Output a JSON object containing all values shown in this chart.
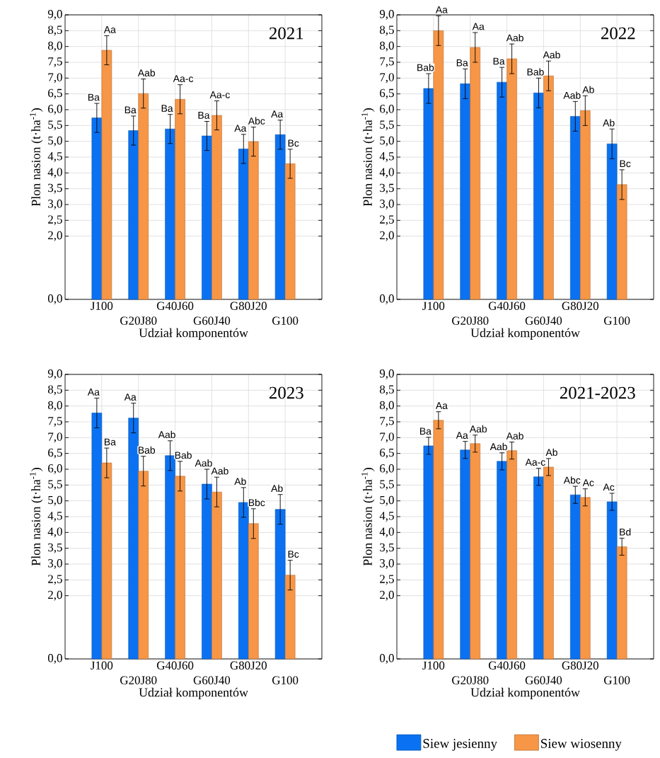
{
  "chart_data": [
    {
      "type": "bar",
      "title": "2021",
      "xlabel": "Udział komponentów",
      "ylabel": "Plon nasion (t·ha$^{-1}$)",
      "categories": [
        "J100",
        "G20J80",
        "G40J60",
        "G60J40",
        "G80J20",
        "G100"
      ],
      "ylim": [
        0,
        9
      ],
      "yticks": [
        {
          "value": 0,
          "label": "0,0"
        },
        {
          "value": 2,
          "label": "2,0"
        },
        {
          "value": 2.5,
          "label": "2,5"
        },
        {
          "value": 3,
          "label": "3,0"
        },
        {
          "value": 3.5,
          "label": "3,5"
        },
        {
          "value": 4,
          "label": "4,0"
        },
        {
          "value": 4.5,
          "label": "4,5"
        },
        {
          "value": 5,
          "label": "5,0"
        },
        {
          "value": 5.5,
          "label": "5,5"
        },
        {
          "value": 6,
          "label": "6,0"
        },
        {
          "value": 6.5,
          "label": "6,5"
        },
        {
          "value": 7,
          "label": "7,0"
        },
        {
          "value": 7.5,
          "label": "7,5"
        },
        {
          "value": 8,
          "label": "8,0"
        },
        {
          "value": 8.5,
          "label": "8,5"
        },
        {
          "value": 9,
          "label": "9,0"
        }
      ],
      "grid": true,
      "series": [
        {
          "color": "#0a72f2",
          "values": [
            5.74,
            5.34,
            5.39,
            5.17,
            4.76,
            5.21
          ],
          "errors": [
            0.46,
            0.46,
            0.46,
            0.46,
            0.46,
            0.46
          ],
          "value_labels": [
            "Ba",
            "Ba",
            "Ba",
            "Ba",
            "Aa",
            "Aa"
          ]
        },
        {
          "color": "#f79646",
          "values": [
            7.88,
            6.51,
            6.33,
            5.82,
            4.99,
            4.29
          ],
          "errors": [
            0.46,
            0.46,
            0.46,
            0.46,
            0.46,
            0.46
          ],
          "value_labels": [
            "Aa",
            "Aab",
            "Aa-c",
            "Aa-c",
            "Abc",
            "Bc"
          ]
        }
      ]
    },
    {
      "type": "bar",
      "title": "2022",
      "xlabel": "Udział komponentów",
      "ylabel": "Plon nasion (t·ha$^{-1}$)",
      "categories": [
        "J100",
        "G20J80",
        "G40J60",
        "G60J40",
        "G80J20",
        "G100"
      ],
      "ylim": [
        0,
        9
      ],
      "yticks": [
        {
          "value": 0,
          "label": "0,0"
        },
        {
          "value": 2,
          "label": "2,0"
        },
        {
          "value": 2.5,
          "label": "2,5"
        },
        {
          "value": 3,
          "label": "3,0"
        },
        {
          "value": 3.5,
          "label": "3,5"
        },
        {
          "value": 4,
          "label": "4,0"
        },
        {
          "value": 4.5,
          "label": "4,5"
        },
        {
          "value": 5,
          "label": "5,0"
        },
        {
          "value": 5.5,
          "label": "5,5"
        },
        {
          "value": 6,
          "label": "6,0"
        },
        {
          "value": 6.5,
          "label": "6,5"
        },
        {
          "value": 7,
          "label": "7,0"
        },
        {
          "value": 7.5,
          "label": "7,5"
        },
        {
          "value": 8,
          "label": "8,0"
        },
        {
          "value": 8.5,
          "label": "8,5"
        },
        {
          "value": 9,
          "label": "9,0"
        }
      ],
      "grid": true,
      "series": [
        {
          "color": "#0a72f2",
          "values": [
            6.67,
            6.82,
            6.87,
            6.53,
            5.79,
            4.92
          ],
          "errors": [
            0.47,
            0.47,
            0.47,
            0.47,
            0.47,
            0.47
          ],
          "value_labels": [
            "Bab",
            "Ba",
            "Ba",
            "Bab",
            "Aab",
            "Ab"
          ]
        },
        {
          "color": "#f79646",
          "values": [
            8.5,
            7.97,
            7.61,
            7.07,
            5.97,
            3.63
          ],
          "errors": [
            0.47,
            0.47,
            0.47,
            0.47,
            0.47,
            0.47
          ],
          "value_labels": [
            "Aa",
            "Aa",
            "Aab",
            "Aab",
            "Ab",
            "Bc"
          ]
        }
      ]
    },
    {
      "type": "bar",
      "title": "2023",
      "xlabel": "Udział komponentów",
      "ylabel": "Plon nasion (t·ha$^{-1}$)",
      "categories": [
        "J100",
        "G20J80",
        "G40J60",
        "G60J40",
        "G80J20",
        "G100"
      ],
      "ylim": [
        0,
        9
      ],
      "yticks": [
        {
          "value": 0,
          "label": "0,0"
        },
        {
          "value": 2,
          "label": "2,0"
        },
        {
          "value": 2.5,
          "label": "2,5"
        },
        {
          "value": 3,
          "label": "3,0"
        },
        {
          "value": 3.5,
          "label": "3,5"
        },
        {
          "value": 4,
          "label": "4,0"
        },
        {
          "value": 4.5,
          "label": "4,5"
        },
        {
          "value": 5,
          "label": "5,0"
        },
        {
          "value": 5.5,
          "label": "5,5"
        },
        {
          "value": 6,
          "label": "6,0"
        },
        {
          "value": 6.5,
          "label": "6,5"
        },
        {
          "value": 7,
          "label": "7,0"
        },
        {
          "value": 7.5,
          "label": "7,5"
        },
        {
          "value": 8,
          "label": "8,0"
        },
        {
          "value": 8.5,
          "label": "8,5"
        },
        {
          "value": 9,
          "label": "9,0"
        }
      ],
      "grid": true,
      "series": [
        {
          "color": "#0a72f2",
          "values": [
            7.78,
            7.62,
            6.43,
            5.53,
            4.95,
            4.73
          ],
          "errors": [
            0.47,
            0.47,
            0.47,
            0.47,
            0.47,
            0.47
          ],
          "value_labels": [
            "Aa",
            "Aa",
            "Aab",
            "Aab",
            "Ab",
            "Ab"
          ]
        },
        {
          "color": "#f79646",
          "values": [
            6.2,
            5.94,
            5.78,
            5.28,
            4.28,
            2.65
          ],
          "errors": [
            0.47,
            0.47,
            0.47,
            0.47,
            0.47,
            0.47
          ],
          "value_labels": [
            "Ba",
            "Bab",
            "Bab",
            "Aab",
            "Bbc",
            "Bc"
          ]
        }
      ]
    },
    {
      "type": "bar",
      "title": "2021-2023",
      "xlabel": "Udział komponentów",
      "ylabel": "Plon nasion (t·ha$^{-1}$)",
      "categories": [
        "J100",
        "G20J80",
        "G40J60",
        "G60J40",
        "G80J20",
        "G100"
      ],
      "ylim": [
        0,
        9
      ],
      "yticks": [
        {
          "value": 0,
          "label": "0,0"
        },
        {
          "value": 2,
          "label": "2,0"
        },
        {
          "value": 2.5,
          "label": "2,5"
        },
        {
          "value": 3,
          "label": "3,0"
        },
        {
          "value": 3.5,
          "label": "3,5"
        },
        {
          "value": 4,
          "label": "4,0"
        },
        {
          "value": 4.5,
          "label": "4,5"
        },
        {
          "value": 5,
          "label": "5,0"
        },
        {
          "value": 5.5,
          "label": "5,5"
        },
        {
          "value": 6,
          "label": "6,0"
        },
        {
          "value": 6.5,
          "label": "6,5"
        },
        {
          "value": 7,
          "label": "7,0"
        },
        {
          "value": 7.5,
          "label": "7,5"
        },
        {
          "value": 8,
          "label": "8,0"
        },
        {
          "value": 8.5,
          "label": "8,5"
        },
        {
          "value": 9,
          "label": "9,0"
        }
      ],
      "grid": true,
      "legend": "bottom",
      "series": [
        {
          "name": "Siew jesienny",
          "color": "#0a72f2",
          "values": [
            6.74,
            6.61,
            6.25,
            5.76,
            5.19,
            4.97
          ],
          "errors": [
            0.27,
            0.27,
            0.27,
            0.27,
            0.27,
            0.27
          ],
          "value_labels": [
            "Ba",
            "Aa",
            "Aab",
            "Aa-c",
            "Abc",
            "Ac"
          ]
        },
        {
          "name": "Siew wiosenny",
          "color": "#f79646",
          "values": [
            7.55,
            6.81,
            6.59,
            6.07,
            5.11,
            3.55
          ],
          "errors": [
            0.27,
            0.27,
            0.27,
            0.27,
            0.27,
            0.27
          ],
          "value_labels": [
            "Aa",
            "Aab",
            "Aab",
            "Ab",
            "Ac",
            "Bd"
          ]
        }
      ]
    }
  ]
}
